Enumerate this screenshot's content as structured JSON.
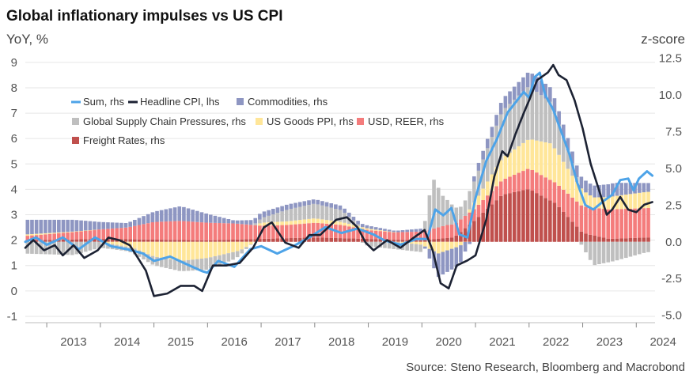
{
  "chart_data": {
    "type": "bar",
    "title": "Global inflationary impulses vs US CPI",
    "ylabel_left": "YoY, %",
    "ylabel_right": "z-score",
    "source": "Source: Steno Research, Bloomberg and Macrobond",
    "ylim_left": [
      -1.25,
      9.4
    ],
    "ylim_right": [
      -5.5,
      12.9
    ],
    "xlim": [
      2012.6,
      2024.35
    ],
    "left_ticks": [
      "-1",
      "0",
      "1",
      "2",
      "3",
      "4",
      "5",
      "6",
      "7",
      "8",
      "9"
    ],
    "right_ticks": [
      "-5.0",
      "-2.5",
      "0.0",
      "2.5",
      "5.0",
      "7.5",
      "10.0",
      "12.5"
    ],
    "x_ticks": [
      "2013",
      "2014",
      "2015",
      "2016",
      "2017",
      "2018",
      "2019",
      "2020",
      "2021",
      "2022",
      "2023",
      "2024"
    ],
    "grid": true,
    "legend_position": "upper-left",
    "bar_series": [
      {
        "key": "freight",
        "name": "Freight Rates, rhs",
        "color": "#C0504D",
        "t": [
          2012.6,
          2014.0,
          2016.0,
          2018.0,
          2020.0,
          2020.6,
          2021.0,
          2021.5,
          2022.0,
          2022.5,
          2023.0,
          2023.5,
          2024.2
        ],
        "v": [
          0.1,
          0.2,
          0.1,
          0.3,
          0.1,
          0.3,
          1.5,
          3.2,
          3.6,
          2.6,
          0.6,
          0.2,
          0.3
        ]
      },
      {
        "key": "usd",
        "name": "USD, REER, rhs",
        "color": "#F47C7C",
        "t": [
          2012.6,
          2013.5,
          2014.5,
          2015.0,
          2015.5,
          2016.0,
          2016.5,
          2017.0,
          2017.5,
          2018.0,
          2018.5,
          2019.0,
          2019.5,
          2020.0,
          2020.5,
          2021.0,
          2021.5,
          2022.0,
          2022.5,
          2023.0,
          2023.5,
          2024.2
        ],
        "v": [
          0.3,
          0.5,
          0.8,
          1.2,
          1.3,
          1.2,
          1.1,
          0.9,
          0.9,
          1.0,
          0.9,
          0.6,
          0.5,
          0.6,
          0.9,
          0.8,
          1.0,
          1.4,
          1.4,
          1.8,
          2.0,
          2.0
        ]
      },
      {
        "key": "goods",
        "name": "US Goods PPI, rhs",
        "color": "#FFE699",
        "t": [
          2012.6,
          2014.0,
          2014.6,
          2015.0,
          2015.5,
          2016.0,
          2016.6,
          2017.0,
          2018.0,
          2019.0,
          2019.5,
          2020.0,
          2020.3,
          2020.7,
          2021.0,
          2021.5,
          2022.0,
          2022.4,
          2022.8,
          2023.2,
          2023.6,
          2024.2
        ],
        "v": [
          0.1,
          0.0,
          -0.4,
          -1.0,
          -1.3,
          -1.1,
          -0.6,
          0.2,
          0.3,
          0.1,
          0.0,
          -0.2,
          -0.8,
          -0.3,
          0.5,
          1.5,
          2.0,
          2.5,
          1.5,
          0.7,
          0.9,
          1.1
        ]
      },
      {
        "key": "gscpi",
        "name": "Global Supply Chain Pressures, rhs",
        "color": "#BFBFBF",
        "t": [
          2012.6,
          2013.5,
          2014.0,
          2014.5,
          2015.0,
          2015.5,
          2016.0,
          2016.5,
          2017.0,
          2017.5,
          2018.0,
          2018.5,
          2019.0,
          2019.5,
          2020.0,
          2020.2,
          2020.4,
          2020.7,
          2021.0,
          2021.5,
          2022.0,
          2022.4,
          2022.8,
          2023.2,
          2023.6,
          2024.2
        ],
        "v": [
          -0.8,
          -0.9,
          -0.4,
          -0.3,
          -0.6,
          -0.7,
          -0.8,
          -0.5,
          0.3,
          0.8,
          1.0,
          0.8,
          -0.3,
          -0.5,
          -0.5,
          3.5,
          2.0,
          0.8,
          1.5,
          3.2,
          3.6,
          2.8,
          0.9,
          -1.6,
          -1.3,
          -0.7
        ]
      },
      {
        "key": "commodities",
        "name": "Commodities, rhs",
        "color": "#8E96C2",
        "t": [
          2012.6,
          2013.5,
          2014.0,
          2014.5,
          2015.0,
          2015.5,
          2016.0,
          2016.5,
          2017.0,
          2018.0,
          2018.5,
          2019.0,
          2019.5,
          2020.0,
          2020.3,
          2020.7,
          2021.0,
          2021.5,
          2022.0,
          2022.4,
          2022.8,
          2023.2,
          2023.6,
          2024.2
        ],
        "v": [
          1.0,
          0.8,
          0.5,
          0.3,
          0.7,
          1.0,
          0.6,
          0.2,
          0.4,
          0.3,
          0.3,
          0.2,
          0.1,
          0.2,
          -1.6,
          -1.3,
          0.5,
          0.8,
          1.0,
          1.0,
          0.8,
          0.8,
          0.9,
          0.6
        ]
      }
    ],
    "line_series": [
      {
        "key": "sum",
        "name": "Sum, rhs",
        "color": "#4DA3E8",
        "axis": "right",
        "points": [
          [
            2012.6,
            0.0
          ],
          [
            2012.8,
            0.3
          ],
          [
            2013.0,
            -0.2
          ],
          [
            2013.3,
            0.3
          ],
          [
            2013.6,
            -0.5
          ],
          [
            2013.9,
            0.3
          ],
          [
            2014.2,
            -0.3
          ],
          [
            2014.5,
            -0.5
          ],
          [
            2014.8,
            -0.8
          ],
          [
            2015.0,
            -1.3
          ],
          [
            2015.3,
            -1.0
          ],
          [
            2015.6,
            -1.5
          ],
          [
            2015.9,
            -2.0
          ],
          [
            2016.0,
            -2.1
          ],
          [
            2016.2,
            -1.3
          ],
          [
            2016.5,
            -1.7
          ],
          [
            2016.8,
            -0.5
          ],
          [
            2017.0,
            -0.3
          ],
          [
            2017.3,
            -0.8
          ],
          [
            2017.6,
            -0.3
          ],
          [
            2017.9,
            0.3
          ],
          [
            2018.2,
            1.0
          ],
          [
            2018.5,
            0.6
          ],
          [
            2018.8,
            0.9
          ],
          [
            2019.1,
            0.5
          ],
          [
            2019.3,
            0.1
          ],
          [
            2019.6,
            -0.2
          ],
          [
            2019.9,
            0.2
          ],
          [
            2020.1,
            0.2
          ],
          [
            2020.25,
            2.2
          ],
          [
            2020.4,
            1.8
          ],
          [
            2020.55,
            2.3
          ],
          [
            2020.7,
            0.5
          ],
          [
            2020.85,
            0.3
          ],
          [
            2021.0,
            3.0
          ],
          [
            2021.2,
            5.5
          ],
          [
            2021.4,
            7.0
          ],
          [
            2021.6,
            8.8
          ],
          [
            2021.75,
            9.5
          ],
          [
            2021.9,
            10.2
          ],
          [
            2022.0,
            9.8
          ],
          [
            2022.1,
            11.2
          ],
          [
            2022.2,
            11.5
          ],
          [
            2022.3,
            10.0
          ],
          [
            2022.45,
            9.0
          ],
          [
            2022.6,
            7.5
          ],
          [
            2022.75,
            6.0
          ],
          [
            2022.9,
            4.0
          ],
          [
            2023.05,
            2.5
          ],
          [
            2023.2,
            2.2
          ],
          [
            2023.4,
            2.8
          ],
          [
            2023.55,
            3.2
          ],
          [
            2023.7,
            4.2
          ],
          [
            2023.85,
            4.3
          ],
          [
            2023.95,
            3.5
          ],
          [
            2024.05,
            4.3
          ],
          [
            2024.2,
            4.8
          ],
          [
            2024.3,
            4.5
          ]
        ]
      },
      {
        "key": "cpi",
        "name": "Headline CPI, lhs",
        "color": "#1C2233",
        "axis": "left",
        "points": [
          [
            2012.6,
            1.7
          ],
          [
            2012.75,
            2.0
          ],
          [
            2012.95,
            1.6
          ],
          [
            2013.15,
            1.8
          ],
          [
            2013.3,
            1.4
          ],
          [
            2013.5,
            1.8
          ],
          [
            2013.7,
            1.3
          ],
          [
            2013.95,
            1.6
          ],
          [
            2014.15,
            2.1
          ],
          [
            2014.35,
            2.0
          ],
          [
            2014.55,
            1.8
          ],
          [
            2014.7,
            1.3
          ],
          [
            2014.85,
            0.8
          ],
          [
            2015.0,
            -0.2
          ],
          [
            2015.25,
            -0.1
          ],
          [
            2015.5,
            0.2
          ],
          [
            2015.75,
            0.2
          ],
          [
            2015.9,
            0.0
          ],
          [
            2016.1,
            1.0
          ],
          [
            2016.35,
            1.0
          ],
          [
            2016.6,
            1.1
          ],
          [
            2016.85,
            1.7
          ],
          [
            2017.05,
            2.5
          ],
          [
            2017.2,
            2.7
          ],
          [
            2017.45,
            1.9
          ],
          [
            2017.7,
            1.7
          ],
          [
            2017.9,
            2.2
          ],
          [
            2018.1,
            2.2
          ],
          [
            2018.4,
            2.8
          ],
          [
            2018.6,
            2.9
          ],
          [
            2018.8,
            2.5
          ],
          [
            2018.95,
            1.9
          ],
          [
            2019.1,
            1.6
          ],
          [
            2019.35,
            2.0
          ],
          [
            2019.6,
            1.7
          ],
          [
            2019.85,
            2.1
          ],
          [
            2020.05,
            2.4
          ],
          [
            2020.2,
            1.6
          ],
          [
            2020.35,
            0.3
          ],
          [
            2020.5,
            0.1
          ],
          [
            2020.65,
            1.0
          ],
          [
            2020.85,
            1.2
          ],
          [
            2021.0,
            1.4
          ],
          [
            2021.2,
            2.8
          ],
          [
            2021.35,
            4.5
          ],
          [
            2021.5,
            5.5
          ],
          [
            2021.6,
            5.3
          ],
          [
            2021.75,
            6.2
          ],
          [
            2021.9,
            7.0
          ],
          [
            2022.0,
            7.5
          ],
          [
            2022.15,
            8.3
          ],
          [
            2022.35,
            8.6
          ],
          [
            2022.45,
            8.9
          ],
          [
            2022.55,
            8.5
          ],
          [
            2022.7,
            8.3
          ],
          [
            2022.85,
            7.5
          ],
          [
            2023.0,
            6.4
          ],
          [
            2023.15,
            5.0
          ],
          [
            2023.3,
            4.0
          ],
          [
            2023.45,
            3.0
          ],
          [
            2023.55,
            3.2
          ],
          [
            2023.7,
            3.7
          ],
          [
            2023.85,
            3.2
          ],
          [
            2024.0,
            3.1
          ],
          [
            2024.15,
            3.4
          ],
          [
            2024.3,
            3.5
          ]
        ]
      }
    ],
    "legend": [
      {
        "key": "sum",
        "kind": "line",
        "label": "Sum, rhs"
      },
      {
        "key": "cpi",
        "kind": "line",
        "label": "Headline CPI, lhs"
      },
      {
        "key": "commodities",
        "kind": "bar",
        "label": "Commodities, rhs"
      },
      {
        "key": "gscpi",
        "kind": "bar",
        "label": "Global Supply Chain Pressures, rhs"
      },
      {
        "key": "goods",
        "kind": "bar",
        "label": "US Goods PPI, rhs"
      },
      {
        "key": "usd",
        "kind": "bar",
        "label": "USD, REER, rhs"
      },
      {
        "key": "freight",
        "kind": "bar",
        "label": "Freight Rates, rhs"
      }
    ]
  }
}
